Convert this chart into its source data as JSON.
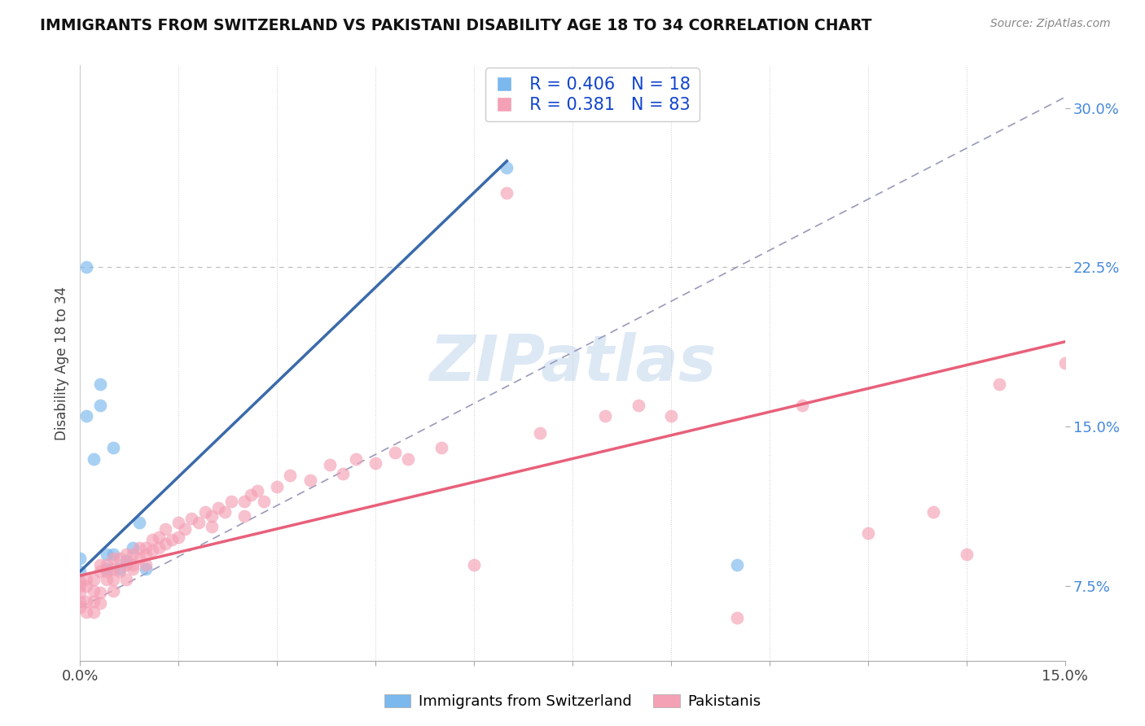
{
  "title": "IMMIGRANTS FROM SWITZERLAND VS PAKISTANI DISABILITY AGE 18 TO 34 CORRELATION CHART",
  "source": "Source: ZipAtlas.com",
  "ylabel": "Disability Age 18 to 34",
  "xlim": [
    0.0,
    0.15
  ],
  "ylim": [
    0.04,
    0.32
  ],
  "xtick_positions": [
    0.0,
    0.015,
    0.03,
    0.045,
    0.06,
    0.075,
    0.09,
    0.105,
    0.12,
    0.135,
    0.15
  ],
  "xtick_labels": [
    "0.0%",
    "",
    "",
    "",
    "",
    "",
    "",
    "",
    "",
    "",
    "15.0%"
  ],
  "ytick_positions": [
    0.075,
    0.15,
    0.225,
    0.3
  ],
  "ytick_labels": [
    "7.5%",
    "15.0%",
    "22.5%",
    "30.0%"
  ],
  "legend_r1": "R = 0.406",
  "legend_n1": "N = 18",
  "legend_r2": "R = 0.381",
  "legend_n2": "N = 83",
  "swiss_color": "#7ab8ed",
  "pak_color": "#f4a0b5",
  "swiss_line_color": "#3a6aaa",
  "pak_line_color": "#e8607a",
  "ref_line_color": "#9999bb",
  "watermark_color": "#dde8f5",
  "background_color": "#ffffff",
  "swiss_line_x0": 0.0,
  "swiss_line_y0": 0.082,
  "swiss_line_x1": 0.065,
  "swiss_line_y1": 0.275,
  "pak_line_x0": 0.0,
  "pak_line_y0": 0.08,
  "pak_line_x1": 0.15,
  "pak_line_y1": 0.19,
  "ref_line_x0": 0.0,
  "ref_line_y0": 0.065,
  "ref_line_x1": 0.15,
  "ref_line_y1": 0.305,
  "swiss_x": [
    0.0,
    0.0,
    0.001,
    0.001,
    0.002,
    0.003,
    0.003,
    0.004,
    0.004,
    0.005,
    0.005,
    0.006,
    0.007,
    0.008,
    0.009,
    0.01,
    0.065,
    0.1
  ],
  "swiss_y": [
    0.082,
    0.088,
    0.155,
    0.225,
    0.135,
    0.17,
    0.16,
    0.083,
    0.09,
    0.14,
    0.09,
    0.083,
    0.087,
    0.093,
    0.105,
    0.083,
    0.272,
    0.085
  ],
  "pak_x": [
    0.0,
    0.0,
    0.0,
    0.0,
    0.0,
    0.001,
    0.001,
    0.001,
    0.001,
    0.002,
    0.002,
    0.002,
    0.002,
    0.003,
    0.003,
    0.003,
    0.003,
    0.004,
    0.004,
    0.004,
    0.005,
    0.005,
    0.005,
    0.005,
    0.006,
    0.006,
    0.007,
    0.007,
    0.007,
    0.008,
    0.008,
    0.008,
    0.009,
    0.009,
    0.01,
    0.01,
    0.01,
    0.011,
    0.011,
    0.012,
    0.012,
    0.013,
    0.013,
    0.014,
    0.015,
    0.015,
    0.016,
    0.017,
    0.018,
    0.019,
    0.02,
    0.02,
    0.021,
    0.022,
    0.023,
    0.025,
    0.025,
    0.026,
    0.027,
    0.028,
    0.03,
    0.032,
    0.035,
    0.038,
    0.04,
    0.042,
    0.045,
    0.048,
    0.05,
    0.055,
    0.06,
    0.065,
    0.07,
    0.08,
    0.085,
    0.09,
    0.1,
    0.11,
    0.12,
    0.13,
    0.135,
    0.14,
    0.15
  ],
  "pak_y": [
    0.075,
    0.077,
    0.072,
    0.068,
    0.065,
    0.075,
    0.078,
    0.068,
    0.063,
    0.073,
    0.078,
    0.068,
    0.063,
    0.082,
    0.085,
    0.072,
    0.067,
    0.082,
    0.085,
    0.078,
    0.083,
    0.088,
    0.078,
    0.073,
    0.082,
    0.088,
    0.085,
    0.09,
    0.078,
    0.085,
    0.09,
    0.083,
    0.088,
    0.093,
    0.09,
    0.093,
    0.085,
    0.092,
    0.097,
    0.093,
    0.098,
    0.095,
    0.102,
    0.097,
    0.098,
    0.105,
    0.102,
    0.107,
    0.105,
    0.11,
    0.108,
    0.103,
    0.112,
    0.11,
    0.115,
    0.115,
    0.108,
    0.118,
    0.12,
    0.115,
    0.122,
    0.127,
    0.125,
    0.132,
    0.128,
    0.135,
    0.133,
    0.138,
    0.135,
    0.14,
    0.085,
    0.26,
    0.147,
    0.155,
    0.16,
    0.155,
    0.06,
    0.16,
    0.1,
    0.11,
    0.09,
    0.17,
    0.18
  ]
}
